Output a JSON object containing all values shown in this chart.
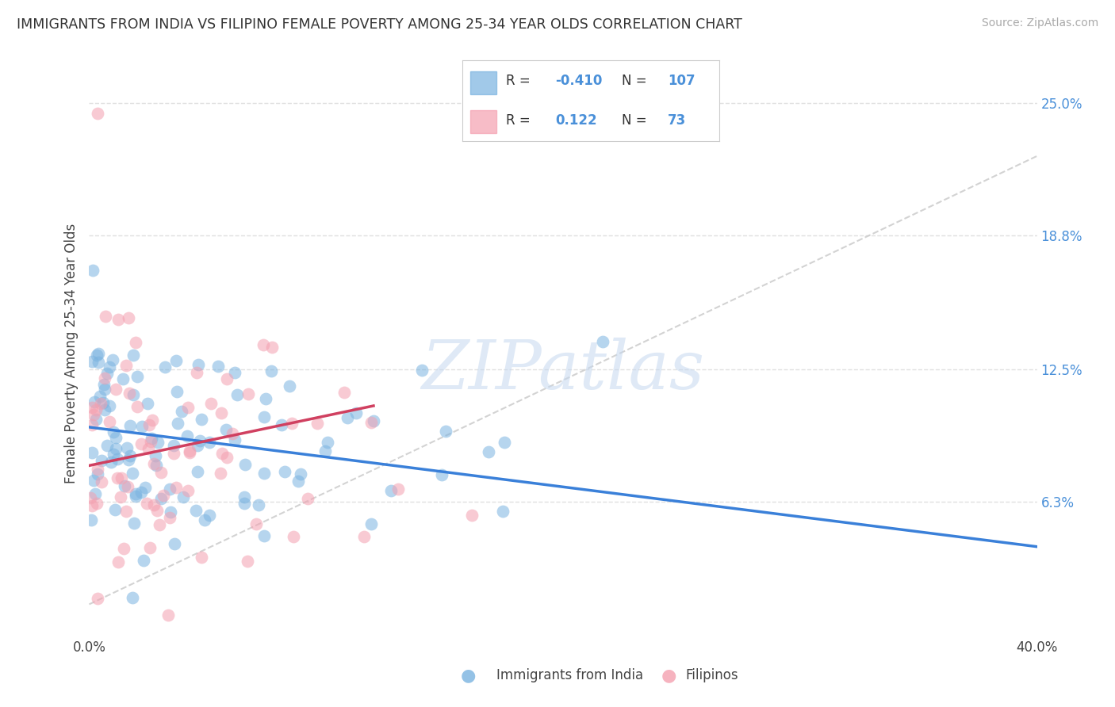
{
  "title": "IMMIGRANTS FROM INDIA VS FILIPINO FEMALE POVERTY AMONG 25-34 YEAR OLDS CORRELATION CHART",
  "source": "Source: ZipAtlas.com",
  "ylabel": "Female Poverty Among 25-34 Year Olds",
  "xlim": [
    0.0,
    40.0
  ],
  "ylim": [
    0.0,
    26.5
  ],
  "xticks": [
    0.0,
    10.0,
    20.0,
    30.0,
    40.0
  ],
  "xticklabels": [
    "0.0%",
    "",
    "",
    "",
    "40.0%"
  ],
  "yticks_right": [
    6.3,
    12.5,
    18.8,
    25.0
  ],
  "ytick_labels_right": [
    "6.3%",
    "12.5%",
    "18.8%",
    "25.0%"
  ],
  "india_color": "#7ab3e0",
  "filipino_color": "#f4a0b0",
  "india_trend_color": "#3a80d9",
  "filipino_trend_color": "#d04060",
  "diagonal_color": "#c8c8c8",
  "background_color": "#ffffff",
  "grid_color": "#e0e0e0",
  "accent_color": "#4a90d9",
  "watermark": "ZIPatlas",
  "legend_india_r": "-0.410",
  "legend_india_n": "107",
  "legend_fil_r": "0.122",
  "legend_fil_n": "73",
  "india_trend_x": [
    0.0,
    40.0
  ],
  "india_trend_y": [
    9.8,
    4.2
  ],
  "filipino_trend_x": [
    0.0,
    12.0
  ],
  "filipino_trend_y": [
    8.0,
    10.8
  ],
  "diagonal_trend_x": [
    0.0,
    40.0
  ],
  "diagonal_trend_y": [
    1.5,
    22.5
  ]
}
